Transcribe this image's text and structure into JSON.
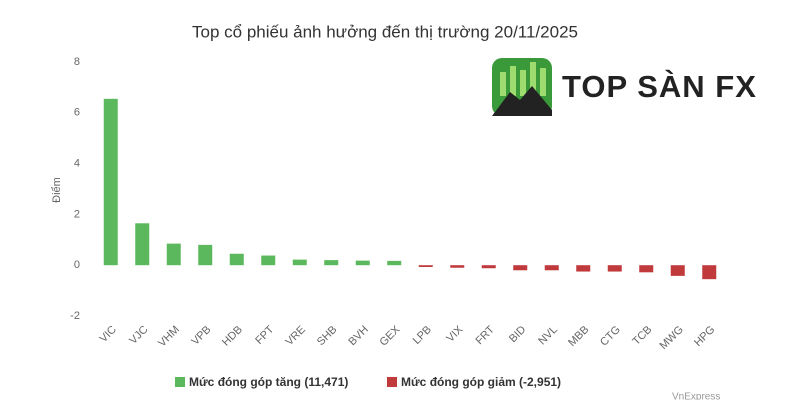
{
  "chart_data": {
    "type": "bar",
    "title": "Top cổ phiếu ảnh hưởng đến thị trường 20/11/2025",
    "y_label": "Điểm",
    "watermark": "TOP SÀN FX",
    "credit": "VnExpress",
    "categories": [
      "VIC",
      "VJC",
      "VHM",
      "VPB",
      "HDB",
      "FPT",
      "VRE",
      "SHB",
      "BVH",
      "GEX",
      "LPB",
      "VIX",
      "FRT",
      "BID",
      "NVL",
      "MBB",
      "CTG",
      "TCB",
      "MWG",
      "HPG"
    ],
    "series": [
      {
        "name": "Mức đóng góp tăng (11,471)",
        "color": "#5cb85c",
        "values": [
          6.55,
          1.65,
          0.85,
          0.8,
          0.45,
          0.38,
          0.22,
          0.2,
          0.18,
          0.17,
          null,
          null,
          null,
          null,
          null,
          null,
          null,
          null,
          null,
          null
        ]
      },
      {
        "name": "Mức đóng góp giảm (-2,951)",
        "color": "#c0393b",
        "values": [
          null,
          null,
          null,
          null,
          null,
          null,
          null,
          null,
          null,
          null,
          -0.07,
          -0.1,
          -0.12,
          -0.2,
          -0.2,
          -0.25,
          -0.25,
          -0.28,
          -0.42,
          -0.55
        ]
      }
    ],
    "ylim": [
      -2,
      8
    ],
    "yticks": [
      -2,
      0,
      2,
      4,
      6,
      8
    ],
    "grid": false
  }
}
